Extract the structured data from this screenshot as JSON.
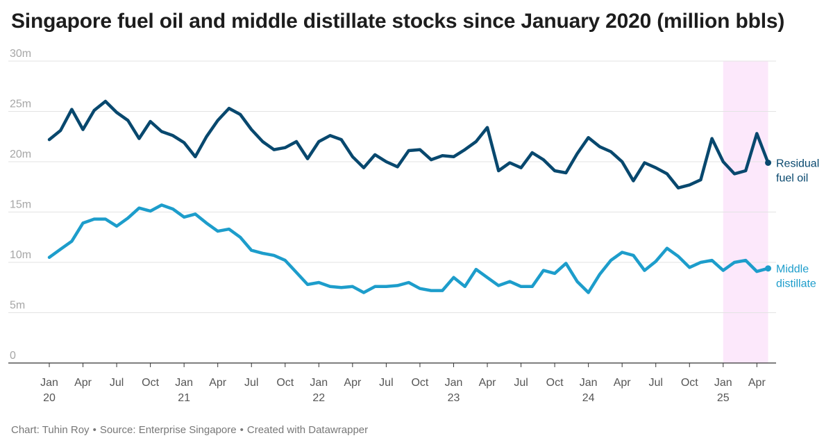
{
  "chart_data": {
    "type": "line",
    "title": "Singapore fuel oil and middle distillate stocks since January 2020 (million bbls)",
    "ylim": [
      0,
      30
    ],
    "y_ticks": [
      0,
      5,
      10,
      15,
      20,
      25,
      30
    ],
    "y_tick_labels": [
      "0",
      "5m",
      "10m",
      "15m",
      "20m",
      "25m",
      "30m"
    ],
    "x_start": "2020-01",
    "x_ticks": [
      {
        "month": "2020-01",
        "label": "Jan",
        "year": "20"
      },
      {
        "month": "2020-04",
        "label": "Apr",
        "year": ""
      },
      {
        "month": "2020-07",
        "label": "Jul",
        "year": ""
      },
      {
        "month": "2020-10",
        "label": "Oct",
        "year": ""
      },
      {
        "month": "2021-01",
        "label": "Jan",
        "year": "21"
      },
      {
        "month": "2021-04",
        "label": "Apr",
        "year": ""
      },
      {
        "month": "2021-07",
        "label": "Jul",
        "year": ""
      },
      {
        "month": "2021-10",
        "label": "Oct",
        "year": ""
      },
      {
        "month": "2022-01",
        "label": "Jan",
        "year": "22"
      },
      {
        "month": "2022-04",
        "label": "Apr",
        "year": ""
      },
      {
        "month": "2022-07",
        "label": "Jul",
        "year": ""
      },
      {
        "month": "2022-10",
        "label": "Oct",
        "year": ""
      },
      {
        "month": "2023-01",
        "label": "Jan",
        "year": "23"
      },
      {
        "month": "2023-04",
        "label": "Apr",
        "year": ""
      },
      {
        "month": "2023-07",
        "label": "Jul",
        "year": ""
      },
      {
        "month": "2023-10",
        "label": "Oct",
        "year": ""
      },
      {
        "month": "2024-01",
        "label": "Jan",
        "year": "24"
      },
      {
        "month": "2024-04",
        "label": "Apr",
        "year": ""
      },
      {
        "month": "2024-07",
        "label": "Jul",
        "year": ""
      },
      {
        "month": "2024-10",
        "label": "Oct",
        "year": ""
      },
      {
        "month": "2025-01",
        "label": "Jan",
        "year": "25"
      },
      {
        "month": "2025-04",
        "label": "Apr",
        "year": ""
      }
    ],
    "highlight_range": [
      "2025-01",
      "2025-05"
    ],
    "highlight_color": "#fce8fb",
    "series": [
      {
        "name": "Residual fuel oil",
        "color": "#08486e",
        "values": [
          22.2,
          23.1,
          25.2,
          23.2,
          25.1,
          26.0,
          24.9,
          24.1,
          22.3,
          24.0,
          23.0,
          22.6,
          21.9,
          20.5,
          22.5,
          24.1,
          25.3,
          24.7,
          23.2,
          22.0,
          21.2,
          21.4,
          22.0,
          20.3,
          22.0,
          22.6,
          22.2,
          20.5,
          19.4,
          20.7,
          20.0,
          19.5,
          21.1,
          21.2,
          20.2,
          20.6,
          20.5,
          21.2,
          22.0,
          23.4,
          19.1,
          19.9,
          19.4,
          20.9,
          20.2,
          19.1,
          18.9,
          20.8,
          22.4,
          21.5,
          21.0,
          20.0,
          18.1,
          19.9,
          19.4,
          18.8,
          17.4,
          17.7,
          18.2,
          22.3,
          20.0,
          18.8,
          19.1,
          22.8,
          19.9
        ],
        "end_label": [
          "Residual",
          "fuel oil"
        ]
      },
      {
        "name": "Middle distillate",
        "color": "#1d9dcb",
        "values": [
          10.5,
          11.3,
          12.1,
          13.9,
          14.3,
          14.3,
          13.6,
          14.4,
          15.4,
          15.1,
          15.7,
          15.3,
          14.5,
          14.8,
          13.9,
          13.1,
          13.3,
          12.5,
          11.2,
          10.9,
          10.7,
          10.2,
          9.0,
          7.8,
          8.0,
          7.6,
          7.5,
          7.6,
          7.0,
          7.6,
          7.6,
          7.7,
          8.0,
          7.4,
          7.2,
          7.2,
          8.5,
          7.6,
          9.3,
          8.5,
          7.7,
          8.1,
          7.6,
          7.6,
          9.2,
          8.9,
          9.9,
          8.1,
          7.0,
          8.8,
          10.2,
          11.0,
          10.7,
          9.2,
          10.1,
          11.4,
          10.6,
          9.5,
          10.0,
          10.2,
          9.2,
          10.0,
          10.2,
          9.1,
          9.4
        ],
        "end_label": [
          "Middle",
          "distillate"
        ]
      }
    ]
  },
  "footer": {
    "credit": "Chart: Tuhin Roy",
    "source": "Source: Enterprise Singapore",
    "tool": "Created with Datawrapper",
    "separator": "•"
  }
}
